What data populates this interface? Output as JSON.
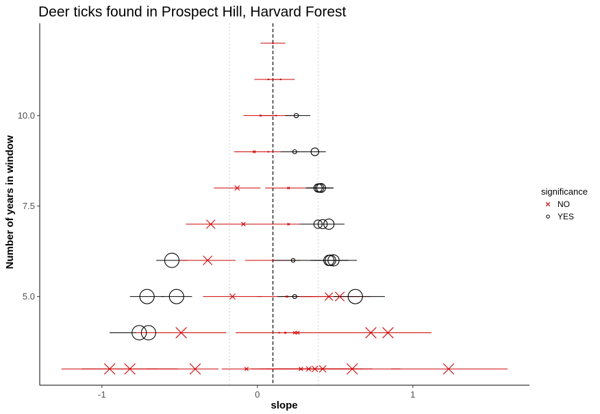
{
  "chart_data": {
    "type": "scatter",
    "title": "Deer ticks found in Prospect Hill, Harvard Forest",
    "xlabel": "slope",
    "ylabel": "Number of years in window",
    "xlim": [
      -1.4,
      1.75
    ],
    "ylim": [
      2.55,
      12.55
    ],
    "x_ticks": [
      {
        "value": -1,
        "label": "-1"
      },
      {
        "value": 0,
        "label": "0"
      },
      {
        "value": 1,
        "label": "1"
      }
    ],
    "y_ticks": [
      {
        "value": 5,
        "label": "5.0"
      },
      {
        "value": 7.5,
        "label": "7.5"
      },
      {
        "value": 10,
        "label": "10.0"
      }
    ],
    "grid": false,
    "reference_lines": {
      "mean_slope": 0.1,
      "dotted_bounds": [
        -0.18,
        0.39
      ]
    },
    "legend": {
      "title": "significance",
      "position": "right",
      "entries": [
        {
          "label": "NO",
          "shape": "cross",
          "color": "#cc0000"
        },
        {
          "label": "YES",
          "shape": "circle",
          "color": "#000000"
        }
      ]
    },
    "colors": {
      "NO": "#cc0000",
      "YES": "#000000"
    },
    "windows": [
      {
        "y": 12,
        "points": [
          {
            "slope": 0.1,
            "lo": 0.02,
            "hi": 0.18,
            "sig": "NO"
          }
        ]
      },
      {
        "y": 11,
        "points": [
          {
            "slope": 0.07,
            "lo": -0.02,
            "hi": 0.15,
            "sig": "NO"
          },
          {
            "slope": 0.15,
            "lo": 0.07,
            "hi": 0.24,
            "sig": "NO"
          }
        ]
      },
      {
        "y": 10,
        "points": [
          {
            "slope": 0.02,
            "lo": -0.09,
            "hi": 0.13,
            "sig": "NO"
          },
          {
            "slope": 0.12,
            "lo": 0.02,
            "hi": 0.22,
            "sig": "NO"
          },
          {
            "slope": 0.25,
            "lo": 0.18,
            "hi": 0.34,
            "sig": "YES"
          }
        ]
      },
      {
        "y": 9,
        "points": [
          {
            "slope": -0.02,
            "lo": -0.15,
            "hi": 0.1,
            "sig": "NO"
          },
          {
            "slope": 0.07,
            "lo": -0.05,
            "hi": 0.19,
            "sig": "NO"
          },
          {
            "slope": 0.24,
            "lo": 0.15,
            "hi": 0.33,
            "sig": "YES"
          },
          {
            "slope": 0.37,
            "lo": 0.3,
            "hi": 0.44,
            "sig": "YES"
          }
        ]
      },
      {
        "y": 8,
        "points": [
          {
            "slope": -0.13,
            "lo": -0.28,
            "hi": 0.02,
            "sig": "NO"
          },
          {
            "slope": 0.2,
            "lo": 0.05,
            "hi": 0.34,
            "sig": "NO"
          },
          {
            "slope": 0.39,
            "lo": 0.31,
            "hi": 0.47,
            "sig": "YES"
          },
          {
            "slope": 0.4,
            "lo": 0.32,
            "hi": 0.49,
            "sig": "YES"
          },
          {
            "slope": 0.41,
            "lo": 0.34,
            "hi": 0.49,
            "sig": "YES"
          }
        ]
      },
      {
        "y": 7,
        "points": [
          {
            "slope": -0.3,
            "lo": -0.46,
            "hi": -0.12,
            "sig": "NO"
          },
          {
            "slope": -0.09,
            "lo": -0.26,
            "hi": 0.08,
            "sig": "NO"
          },
          {
            "slope": 0.2,
            "lo": 0.04,
            "hi": 0.36,
            "sig": "NO"
          },
          {
            "slope": 0.39,
            "lo": 0.27,
            "hi": 0.51,
            "sig": "YES"
          },
          {
            "slope": 0.42,
            "lo": 0.3,
            "hi": 0.53,
            "sig": "YES"
          },
          {
            "slope": 0.46,
            "lo": 0.35,
            "hi": 0.56,
            "sig": "YES"
          }
        ]
      },
      {
        "y": 6,
        "points": [
          {
            "slope": -0.55,
            "lo": -0.65,
            "hi": -0.45,
            "sig": "YES"
          },
          {
            "slope": -0.32,
            "lo": -0.5,
            "hi": -0.14,
            "sig": "NO"
          },
          {
            "slope": 0.1,
            "lo": -0.08,
            "hi": 0.28,
            "sig": "NO"
          },
          {
            "slope": 0.23,
            "lo": 0.1,
            "hi": 0.36,
            "sig": "YES"
          },
          {
            "slope": 0.46,
            "lo": 0.34,
            "hi": 0.58,
            "sig": "YES"
          },
          {
            "slope": 0.47,
            "lo": 0.35,
            "hi": 0.59,
            "sig": "YES"
          },
          {
            "slope": 0.49,
            "lo": 0.36,
            "hi": 0.64,
            "sig": "YES"
          }
        ]
      },
      {
        "y": 5,
        "points": [
          {
            "slope": -0.71,
            "lo": -0.82,
            "hi": -0.6,
            "sig": "YES"
          },
          {
            "slope": -0.52,
            "lo": -0.62,
            "hi": -0.42,
            "sig": "YES"
          },
          {
            "slope": -0.16,
            "lo": -0.35,
            "hi": 0.03,
            "sig": "NO"
          },
          {
            "slope": 0.19,
            "lo": 0.0,
            "hi": 0.38,
            "sig": "NO"
          },
          {
            "slope": 0.24,
            "lo": 0.13,
            "hi": 0.35,
            "sig": "YES"
          },
          {
            "slope": 0.46,
            "lo": 0.27,
            "hi": 0.65,
            "sig": "NO"
          },
          {
            "slope": 0.53,
            "lo": 0.33,
            "hi": 0.73,
            "sig": "NO"
          },
          {
            "slope": 0.63,
            "lo": 0.49,
            "hi": 0.82,
            "sig": "YES"
          }
        ]
      },
      {
        "y": 4,
        "points": [
          {
            "slope": -0.76,
            "lo": -0.95,
            "hi": -0.57,
            "sig": "YES"
          },
          {
            "slope": -0.7,
            "lo": -0.89,
            "hi": -0.51,
            "sig": "YES"
          },
          {
            "slope": -0.49,
            "lo": -0.78,
            "hi": -0.2,
            "sig": "NO"
          },
          {
            "slope": 0.14,
            "lo": -0.14,
            "hi": 0.42,
            "sig": "NO"
          },
          {
            "slope": 0.18,
            "lo": -0.1,
            "hi": 0.46,
            "sig": "NO"
          },
          {
            "slope": 0.24,
            "lo": -0.04,
            "hi": 0.52,
            "sig": "NO"
          },
          {
            "slope": 0.26,
            "lo": -0.02,
            "hi": 0.54,
            "sig": "NO"
          },
          {
            "slope": 0.73,
            "lo": 0.35,
            "hi": 1.11,
            "sig": "NO"
          },
          {
            "slope": 0.84,
            "lo": 0.46,
            "hi": 1.12,
            "sig": "NO"
          }
        ]
      },
      {
        "y": 3,
        "points": [
          {
            "slope": -0.95,
            "lo": -1.26,
            "hi": -0.64,
            "sig": "NO"
          },
          {
            "slope": -0.82,
            "lo": -1.13,
            "hi": -0.51,
            "sig": "NO"
          },
          {
            "slope": -0.4,
            "lo": -0.71,
            "hi": -0.25,
            "sig": "NO"
          },
          {
            "slope": -0.07,
            "lo": -0.23,
            "hi": 0.09,
            "sig": "NO"
          },
          {
            "slope": 0.28,
            "lo": -0.04,
            "hi": 0.6,
            "sig": "NO"
          },
          {
            "slope": 0.33,
            "lo": 0.02,
            "hi": 0.64,
            "sig": "NO"
          },
          {
            "slope": 0.37,
            "lo": 0.06,
            "hi": 0.68,
            "sig": "NO"
          },
          {
            "slope": 0.42,
            "lo": 0.1,
            "hi": 0.74,
            "sig": "NO"
          },
          {
            "slope": 0.61,
            "lo": 0.3,
            "hi": 0.92,
            "sig": "NO"
          },
          {
            "slope": 1.23,
            "lo": 0.86,
            "hi": 1.61,
            "sig": "NO"
          }
        ]
      }
    ]
  }
}
